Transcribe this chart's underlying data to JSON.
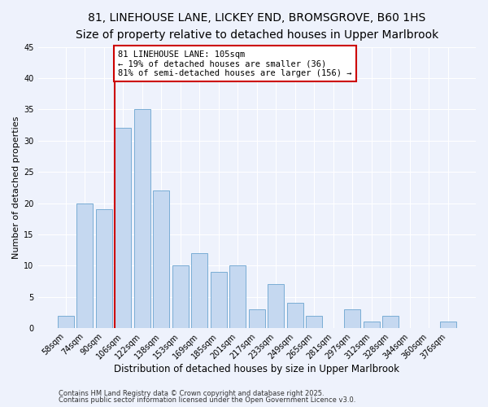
{
  "title": "81, LINEHOUSE LANE, LICKEY END, BROMSGROVE, B60 1HS",
  "subtitle": "Size of property relative to detached houses in Upper Marlbrook",
  "xlabel": "Distribution of detached houses by size in Upper Marlbrook",
  "ylabel": "Number of detached properties",
  "bin_labels": [
    "58sqm",
    "74sqm",
    "90sqm",
    "106sqm",
    "122sqm",
    "138sqm",
    "153sqm",
    "169sqm",
    "185sqm",
    "201sqm",
    "217sqm",
    "233sqm",
    "249sqm",
    "265sqm",
    "281sqm",
    "297sqm",
    "312sqm",
    "328sqm",
    "344sqm",
    "360sqm",
    "376sqm"
  ],
  "bar_values": [
    2,
    20,
    19,
    32,
    35,
    22,
    10,
    12,
    9,
    10,
    3,
    7,
    4,
    2,
    0,
    3,
    1,
    2,
    0,
    0,
    1
  ],
  "bar_color": "#c5d8f0",
  "bar_edge_color": "#7aadd4",
  "background_color": "#eef2fc",
  "grid_color": "#ffffff",
  "vline_color": "#cc0000",
  "annotation_text": "81 LINEHOUSE LANE: 105sqm\n← 19% of detached houses are smaller (36)\n81% of semi-detached houses are larger (156) →",
  "annotation_box_edgecolor": "#cc0000",
  "annotation_box_facecolor": "#ffffff",
  "ylim": [
    0,
    45
  ],
  "yticks": [
    0,
    5,
    10,
    15,
    20,
    25,
    30,
    35,
    40,
    45
  ],
  "footer1": "Contains HM Land Registry data © Crown copyright and database right 2025.",
  "footer2": "Contains public sector information licensed under the Open Government Licence v3.0.",
  "title_fontsize": 10,
  "subtitle_fontsize": 9,
  "xlabel_fontsize": 8.5,
  "ylabel_fontsize": 8,
  "tick_fontsize": 7,
  "annotation_fontsize": 7.5,
  "footer_fontsize": 6
}
